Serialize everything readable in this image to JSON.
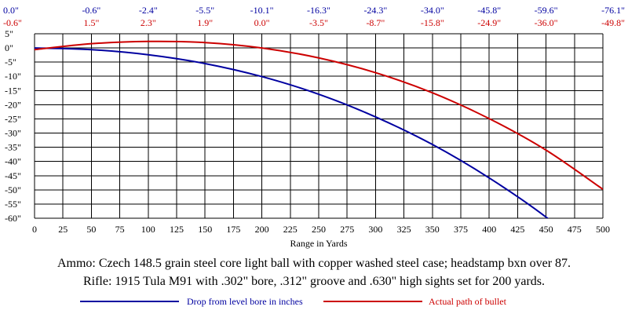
{
  "chart_data": {
    "type": "line",
    "xlabel": "Range in Yards",
    "ylabel": "",
    "xlim": [
      0,
      500
    ],
    "ylim": [
      -60,
      5
    ],
    "grid": true,
    "legend_position": "bottom",
    "x_ticks": [
      0,
      25,
      50,
      75,
      100,
      125,
      150,
      175,
      200,
      225,
      250,
      275,
      300,
      325,
      350,
      375,
      400,
      425,
      450,
      475,
      500
    ],
    "x_tick_labels": [
      "0",
      "25",
      "50",
      "75",
      "100",
      "125",
      "150",
      "175",
      "200",
      "225",
      "250",
      "275",
      "300",
      "325",
      "350",
      "375",
      "400",
      "425",
      "450",
      "475",
      "500"
    ],
    "y_ticks": [
      5,
      0,
      -5,
      -10,
      -15,
      -20,
      -25,
      -30,
      -35,
      -40,
      -45,
      -50,
      -55,
      -60
    ],
    "y_tick_labels": [
      "5\"",
      "0\"",
      "-5\"",
      "-10\"",
      "-15\"",
      "-20\"",
      "-25\"",
      "-30\"",
      "-35\"",
      "-40\"",
      "-45\"",
      "-50\"",
      "-55\"",
      "-60\""
    ],
    "top_annotations": {
      "x": [
        0,
        50,
        100,
        150,
        200,
        250,
        300,
        350,
        400,
        450,
        500
      ],
      "drop_labels": [
        "0.0\"",
        "-0.6\"",
        "-2.4\"",
        "-5.5\"",
        "-10.1\"",
        "-16.3\"",
        "-24.3\"",
        "-34.0\"",
        "-45.8\"",
        "-59.6\"",
        "-76.1\""
      ],
      "path_labels": [
        "-0.6\"",
        "1.5\"",
        "2.3\"",
        "1.9\"",
        "0.0\"",
        "-3.5\"",
        "-8.7\"",
        "-15.8\"",
        "-24.9\"",
        "-36.0\"",
        "-49.8\""
      ]
    },
    "series": [
      {
        "name": "Drop from level bore in inches",
        "color": "#0000a0",
        "x": [
          0,
          50,
          100,
          150,
          200,
          250,
          300,
          350,
          400,
          450,
          500
        ],
        "y": [
          0.0,
          -0.6,
          -2.4,
          -5.5,
          -10.1,
          -16.3,
          -24.3,
          -34.0,
          -45.8,
          -59.6,
          -76.1
        ]
      },
      {
        "name": "Actual path of bullet",
        "color": "#cc0000",
        "x": [
          0,
          50,
          100,
          150,
          200,
          250,
          300,
          350,
          400,
          450,
          500
        ],
        "y": [
          -0.6,
          1.5,
          2.3,
          1.9,
          0.0,
          -3.5,
          -8.7,
          -15.8,
          -24.9,
          -36.0,
          -49.8
        ]
      }
    ]
  },
  "notes": {
    "ammo": "Ammo:  Czech 148.5 grain steel core light ball with copper washed steel case; headstamp bxn over 87.",
    "rifle": "Rifle:  1915 Tula M91 with .302\" bore, .312\" groove and .630\" high sights set for 200 yards."
  },
  "colors": {
    "drop": "#0000a0",
    "path": "#cc0000",
    "grid": "#000000"
  }
}
